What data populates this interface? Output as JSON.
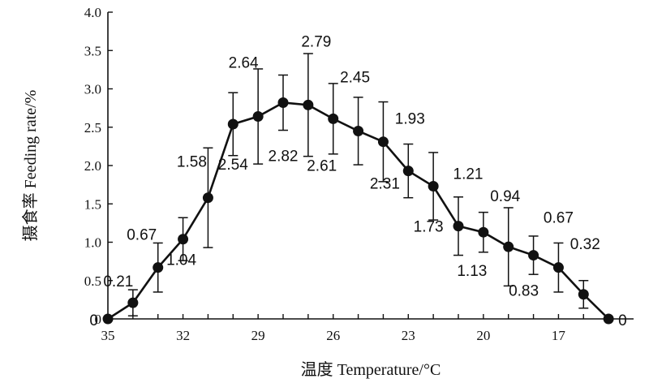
{
  "chart_data": {
    "type": "line",
    "xlabel": "温度 Temperature/°C",
    "ylabel": "摄食率 Feeding rate/%",
    "x_reversed": true,
    "xlim": [
      35,
      14
    ],
    "ylim": [
      0,
      4.0
    ],
    "x_ticks": [
      "35",
      "32",
      "29",
      "26",
      "23",
      "20",
      "17"
    ],
    "y_ticks": [
      "0",
      "0.5",
      "1.0",
      "1.5",
      "2.0",
      "2.5",
      "3.0",
      "3.5",
      "4.0"
    ],
    "grid": false,
    "legend": "none",
    "series": [
      {
        "x": [
          35,
          34,
          33,
          32,
          31,
          30,
          29,
          28,
          27,
          26,
          25,
          24,
          23,
          22,
          21,
          20,
          19,
          18,
          17,
          16,
          15
        ],
        "values": [
          0,
          0.21,
          0.67,
          1.04,
          1.58,
          2.54,
          2.64,
          2.82,
          2.79,
          2.61,
          2.45,
          2.31,
          1.93,
          1.73,
          1.21,
          1.13,
          0.94,
          0.83,
          0.67,
          0.32,
          0
        ],
        "labels": [
          "0",
          "0.21",
          "0.67",
          "1.04",
          "1.58",
          "2.54",
          "2.64",
          "2.82",
          "2.79",
          "2.61",
          "2.45",
          "2.31",
          "1.93",
          "1.73",
          "1.21",
          "1.13",
          "0.94",
          "0.83",
          "0.67",
          "0.32",
          "0"
        ],
        "error": [
          0,
          0.17,
          0.32,
          0.28,
          0.65,
          0.41,
          0.62,
          0.36,
          0.67,
          0.46,
          0.44,
          0.52,
          0.35,
          0.44,
          0.38,
          0.26,
          0.51,
          0.25,
          0.32,
          0.18,
          0
        ]
      }
    ]
  }
}
